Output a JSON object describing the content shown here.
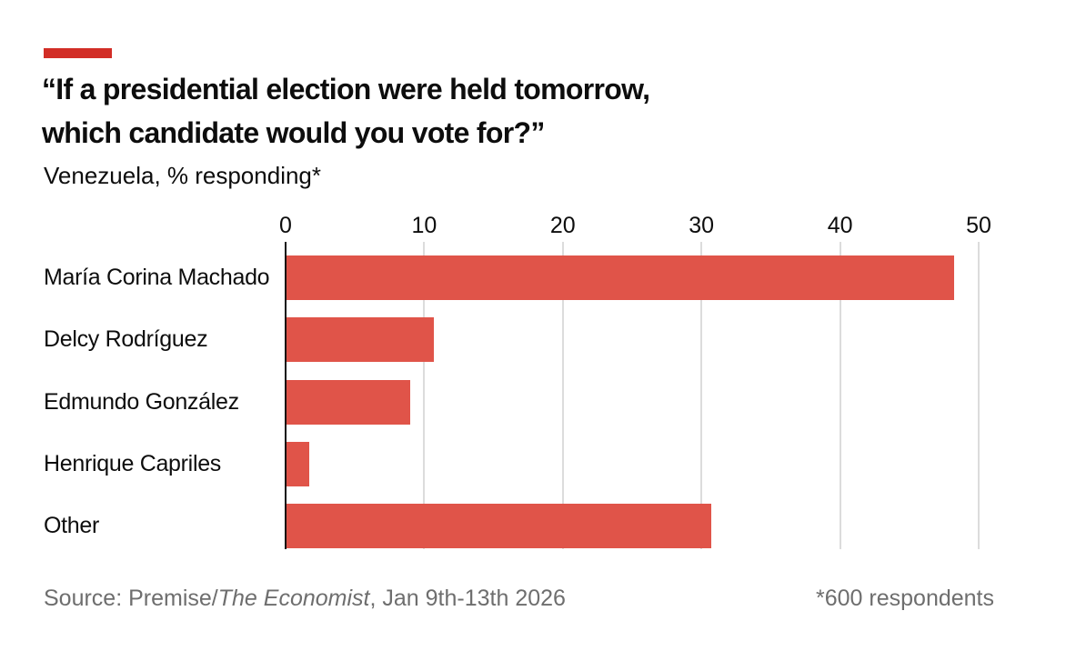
{
  "card": {
    "title_line1": "“If a presidential election were held tomorrow,",
    "title_line2": "which candidate would you vote for?”",
    "subtitle": "Venezuela, % responding*"
  },
  "chart_data": {
    "type": "bar",
    "orientation": "horizontal",
    "title": "“If a presidential election were held tomorrow, which candidate would you vote for?”",
    "subtitle": "Venezuela, % responding*",
    "categories": [
      "María Corina Machado",
      "Delcy Rodríguez",
      "Edmundo González",
      "Henrique Capriles",
      "Other"
    ],
    "values": [
      48.2,
      10.7,
      9.0,
      1.7,
      30.7
    ],
    "xlabel": "",
    "ylabel": "",
    "xlim": [
      0,
      50
    ],
    "xticks": [
      0,
      10,
      20,
      30,
      40,
      50
    ],
    "grid": "vertical-gridlines",
    "legend": "none",
    "bar_color": "#E05449"
  },
  "footer": {
    "source_prefix": "Source: Premise/",
    "source_italic": "The Economist",
    "source_suffix": ", Jan 9th-13th 2026",
    "footnote": "*600 respondents"
  },
  "colors": {
    "accent_red": "#D22D26",
    "bar_red": "#E05449",
    "gridline": "#DCDCDC",
    "axis_line": "#121212",
    "text": "#0D0D0D",
    "footer_text": "#6E6E6E",
    "background": "#FFFFFF"
  }
}
